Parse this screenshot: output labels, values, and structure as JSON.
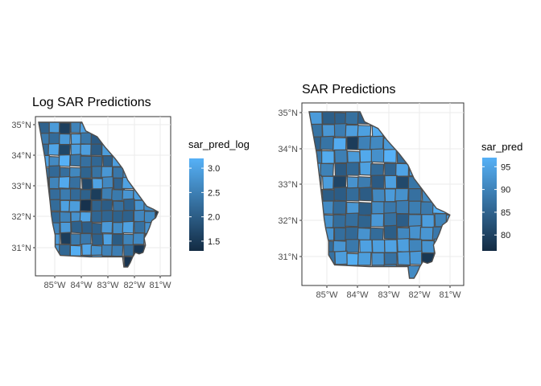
{
  "panels": [
    {
      "title": "Log SAR Predictions",
      "legend_title": "sar_pred_log",
      "x_ticks": [
        "85°W",
        "84°W",
        "83°W",
        "82°W",
        "81°W"
      ],
      "y_ticks": [
        "35°N",
        "34°N",
        "33°N",
        "32°N",
        "31°N"
      ],
      "legend_ticks": [
        "3.0",
        "2.5",
        "2.0",
        "1.5"
      ],
      "legend_values": [
        3.0,
        2.5,
        2.0,
        1.5
      ],
      "legend_range": [
        1.3,
        3.2
      ]
    },
    {
      "title": "SAR Predictions",
      "legend_title": "sar_pred",
      "x_ticks": [
        "85°W",
        "84°W",
        "83°W",
        "82°W",
        "81°W"
      ],
      "y_ticks": [
        "35°N",
        "34°N",
        "33°N",
        "32°N",
        "31°N"
      ],
      "legend_ticks": [
        "95",
        "90",
        "85",
        "80"
      ],
      "legend_values": [
        95,
        90,
        85,
        80
      ],
      "legend_range": [
        76.5,
        97
      ]
    }
  ],
  "colors": {
    "panel_bg": "#ffffff",
    "grid": "#ebebeb",
    "border": "#333333",
    "county_border": "#4d4d4d",
    "low": "#132b43",
    "high": "#56b1f7"
  }
}
